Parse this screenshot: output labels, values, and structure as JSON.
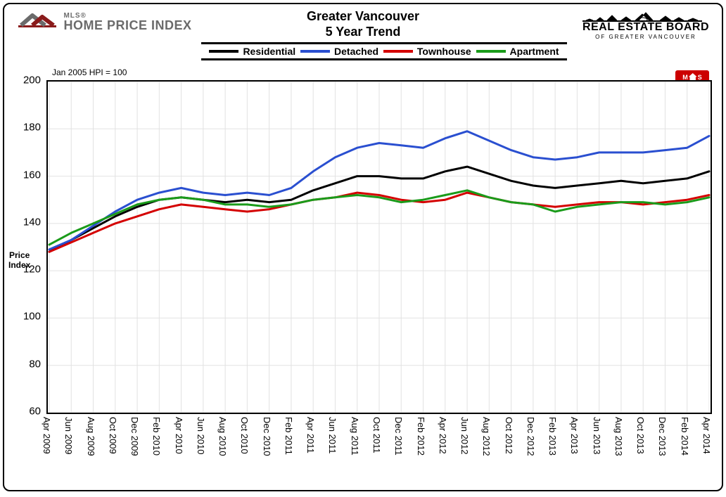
{
  "header": {
    "logo_small": "MLS®",
    "logo_big": "HOME PRICE INDEX",
    "title_line1": "Greater Vancouver",
    "title_line2": "5 Year Trend",
    "right_brand": "REAL ESTATE BOARD",
    "right_sub": "OF GREATER VANCOUVER"
  },
  "note": "Jan 2005 HPI = 100",
  "yaxis_title": "Price Index",
  "legend": [
    {
      "label": "Residential",
      "color": "#000000"
    },
    {
      "label": "Detached",
      "color": "#2a4fd0"
    },
    {
      "label": "Townhouse",
      "color": "#d40000"
    },
    {
      "label": "Apartment",
      "color": "#1a9b1a"
    }
  ],
  "chart": {
    "type": "line",
    "background_color": "#ffffff",
    "grid_color": "#e2e2e2",
    "line_width": 3,
    "ylim": [
      60,
      200
    ],
    "ytick_step": 20,
    "yticks": [
      60,
      80,
      100,
      120,
      140,
      160,
      180,
      200
    ],
    "x_categories": [
      "Apr 2009",
      "Jun 2009",
      "Aug 2009",
      "Oct 2009",
      "Dec 2009",
      "Feb 2010",
      "Apr 2010",
      "Jun 2010",
      "Aug 2010",
      "Oct 2010",
      "Dec 2010",
      "Feb 2011",
      "Apr 2011",
      "Jun 2011",
      "Aug 2011",
      "Oct 2011",
      "Dec 2011",
      "Feb 2012",
      "Apr 2012",
      "Jun 2012",
      "Aug 2012",
      "Oct 2012",
      "Dec 2012",
      "Feb 2013",
      "Apr 2013",
      "Jun 2013",
      "Aug 2013",
      "Oct 2013",
      "Dec 2013",
      "Feb 2014",
      "Apr 2014"
    ],
    "series": {
      "Residential": {
        "color": "#000000",
        "values": [
          128,
          133,
          138,
          143,
          147,
          150,
          151,
          150,
          149,
          150,
          149,
          150,
          154,
          157,
          160,
          160,
          159,
          159,
          162,
          164,
          161,
          158,
          156,
          155,
          156,
          157,
          158,
          157,
          158,
          159,
          162
        ]
      },
      "Detached": {
        "color": "#2a4fd0",
        "values": [
          129,
          133,
          139,
          145,
          150,
          153,
          155,
          153,
          152,
          153,
          152,
          155,
          162,
          168,
          172,
          174,
          173,
          172,
          176,
          179,
          175,
          171,
          168,
          167,
          168,
          170,
          170,
          170,
          171,
          172,
          177
        ]
      },
      "Townhouse": {
        "color": "#d40000",
        "values": [
          128,
          132,
          136,
          140,
          143,
          146,
          148,
          147,
          146,
          145,
          146,
          148,
          150,
          151,
          153,
          152,
          150,
          149,
          150,
          153,
          151,
          149,
          148,
          147,
          148,
          149,
          149,
          148,
          149,
          150,
          152
        ]
      },
      "Apartment": {
        "color": "#1a9b1a",
        "values": [
          131,
          136,
          140,
          144,
          148,
          150,
          151,
          150,
          148,
          148,
          147,
          148,
          150,
          151,
          152,
          151,
          149,
          150,
          152,
          154,
          151,
          149,
          148,
          145,
          147,
          148,
          149,
          149,
          148,
          149,
          151
        ]
      }
    }
  },
  "badge": {
    "left": "M",
    "right": "S"
  }
}
